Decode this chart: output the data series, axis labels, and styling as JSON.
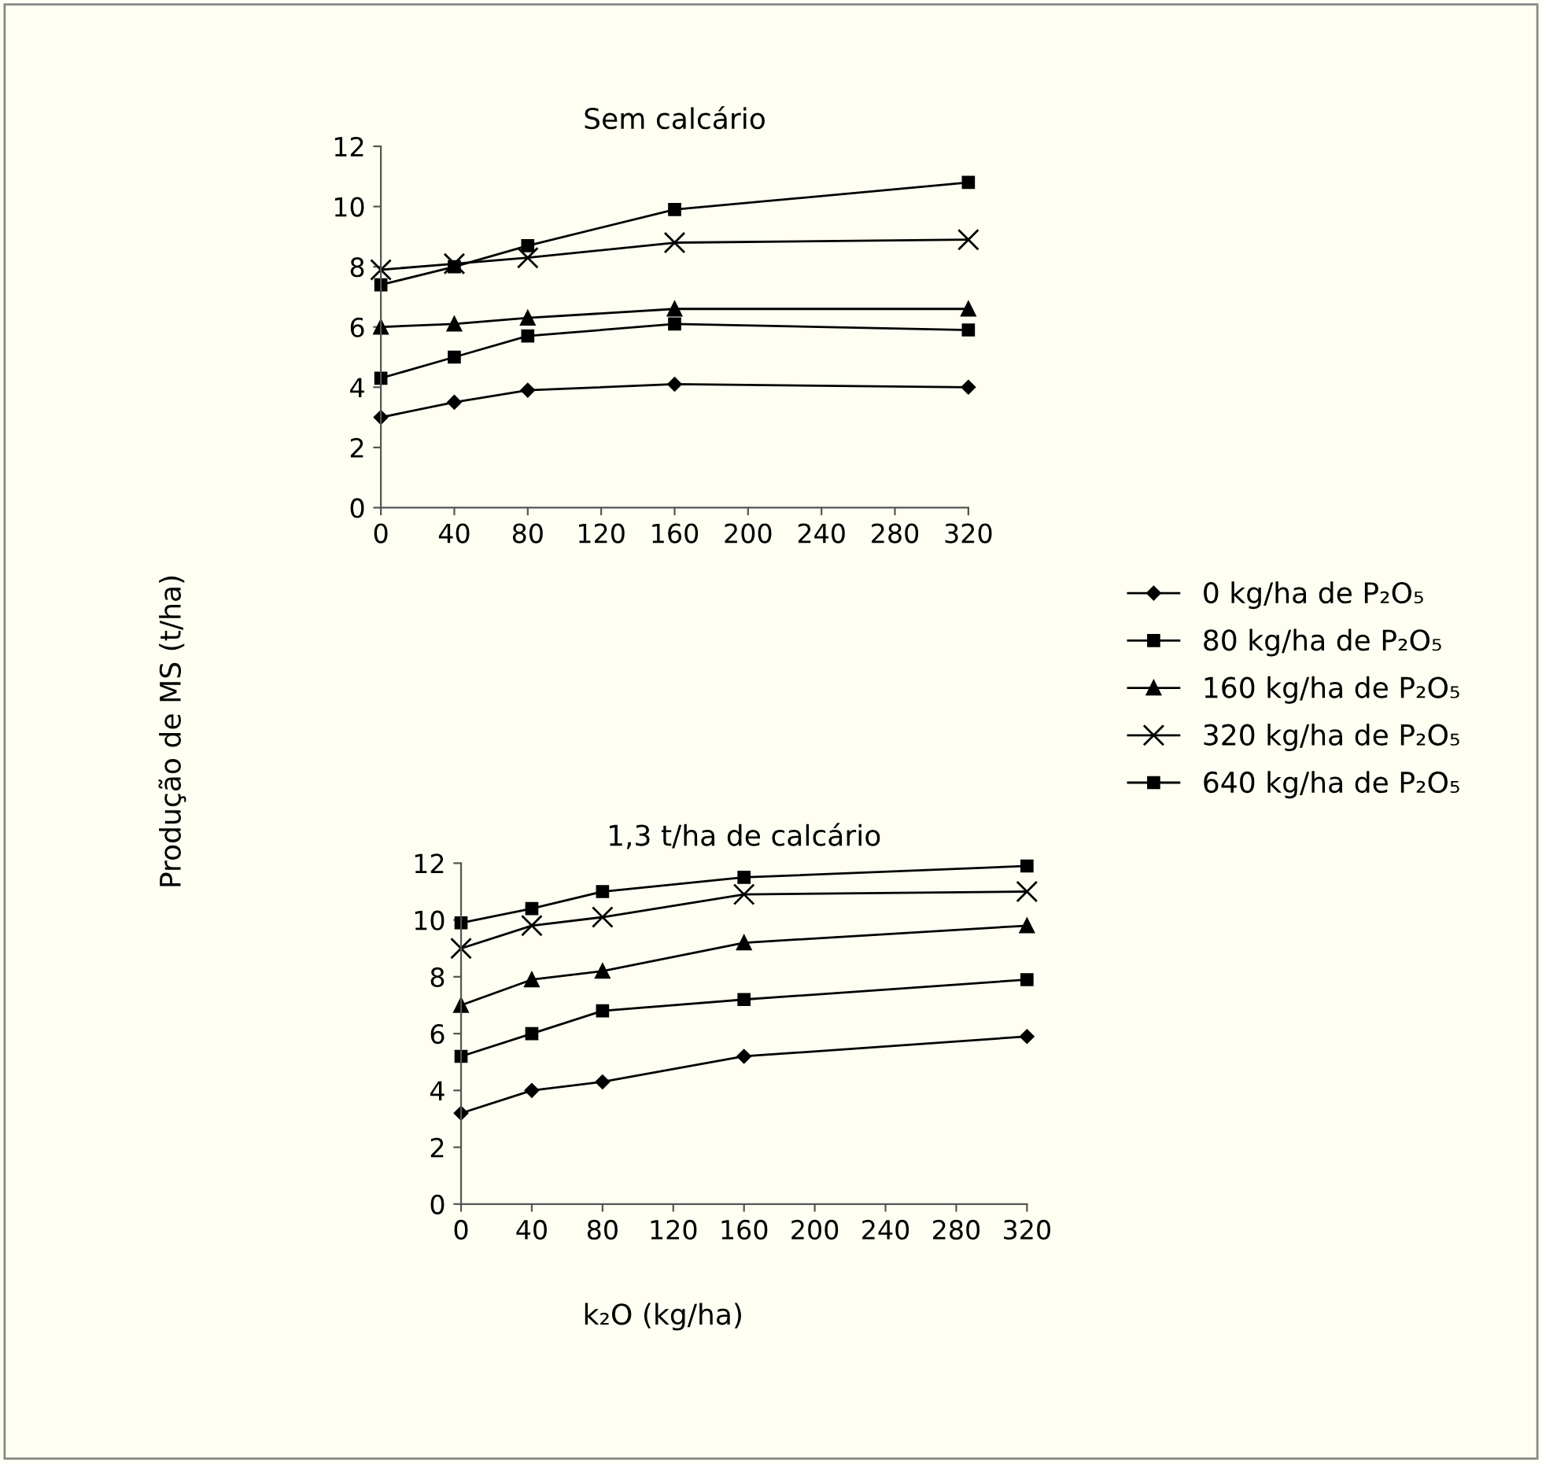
{
  "chart_data": [
    {
      "type": "line",
      "title": "Sem calcário",
      "ylabel": "Produção de MS (t/ha)",
      "legend": "right",
      "x": [
        0,
        40,
        80,
        160,
        320
      ],
      "xlim": [
        0,
        320
      ],
      "xticks": [
        0,
        40,
        80,
        120,
        160,
        200,
        240,
        280,
        320
      ],
      "ylim": [
        0,
        12
      ],
      "yticks": [
        0,
        2,
        4,
        6,
        8,
        10,
        12
      ],
      "grid": false,
      "series": [
        {
          "name": "0 kg/ha de P₂O₅",
          "color": "#000000",
          "marker": "diamond",
          "values": [
            3.0,
            3.5,
            3.9,
            4.1,
            4.0
          ]
        },
        {
          "name": "80 kg/ha de P₂O₅",
          "color": "#000000",
          "marker": "square",
          "values": [
            4.3,
            5.0,
            5.7,
            6.1,
            5.9
          ]
        },
        {
          "name": "160 kg/ha de P₂O₅",
          "color": "#000000",
          "marker": "triangle",
          "values": [
            6.0,
            6.1,
            6.3,
            6.6,
            6.6
          ]
        },
        {
          "name": "320 kg/ha de P₂O₅",
          "color": "#000000",
          "marker": "cross",
          "values": [
            7.9,
            8.1,
            8.3,
            8.8,
            8.9
          ]
        },
        {
          "name": "640 kg/ha de P₂O₅",
          "color": "#000000",
          "marker": "square",
          "values": [
            7.4,
            8.0,
            8.7,
            9.9,
            10.8
          ]
        }
      ]
    },
    {
      "type": "line",
      "title": "1,3 t/ha de calcário",
      "xlabel": "k₂O (kg/ha)",
      "x": [
        0,
        40,
        80,
        160,
        320
      ],
      "xlim": [
        0,
        320
      ],
      "xticks": [
        0,
        40,
        80,
        120,
        160,
        200,
        240,
        280,
        320
      ],
      "ylim": [
        0,
        12
      ],
      "yticks": [
        0,
        2,
        4,
        6,
        8,
        10,
        12
      ],
      "grid": false,
      "series": [
        {
          "color": "#000000",
          "marker": "diamond",
          "values": [
            3.2,
            4.0,
            4.3,
            5.2,
            5.9
          ]
        },
        {
          "color": "#000000",
          "marker": "square",
          "values": [
            5.2,
            6.0,
            6.8,
            7.2,
            7.9
          ]
        },
        {
          "color": "#000000",
          "marker": "triangle",
          "values": [
            7.0,
            7.9,
            8.2,
            9.2,
            9.8
          ]
        },
        {
          "color": "#000000",
          "marker": "cross",
          "values": [
            9.0,
            9.8,
            10.1,
            10.9,
            11.0
          ]
        },
        {
          "color": "#000000",
          "marker": "square",
          "values": [
            9.9,
            10.4,
            11.0,
            11.5,
            11.9
          ]
        }
      ]
    }
  ]
}
